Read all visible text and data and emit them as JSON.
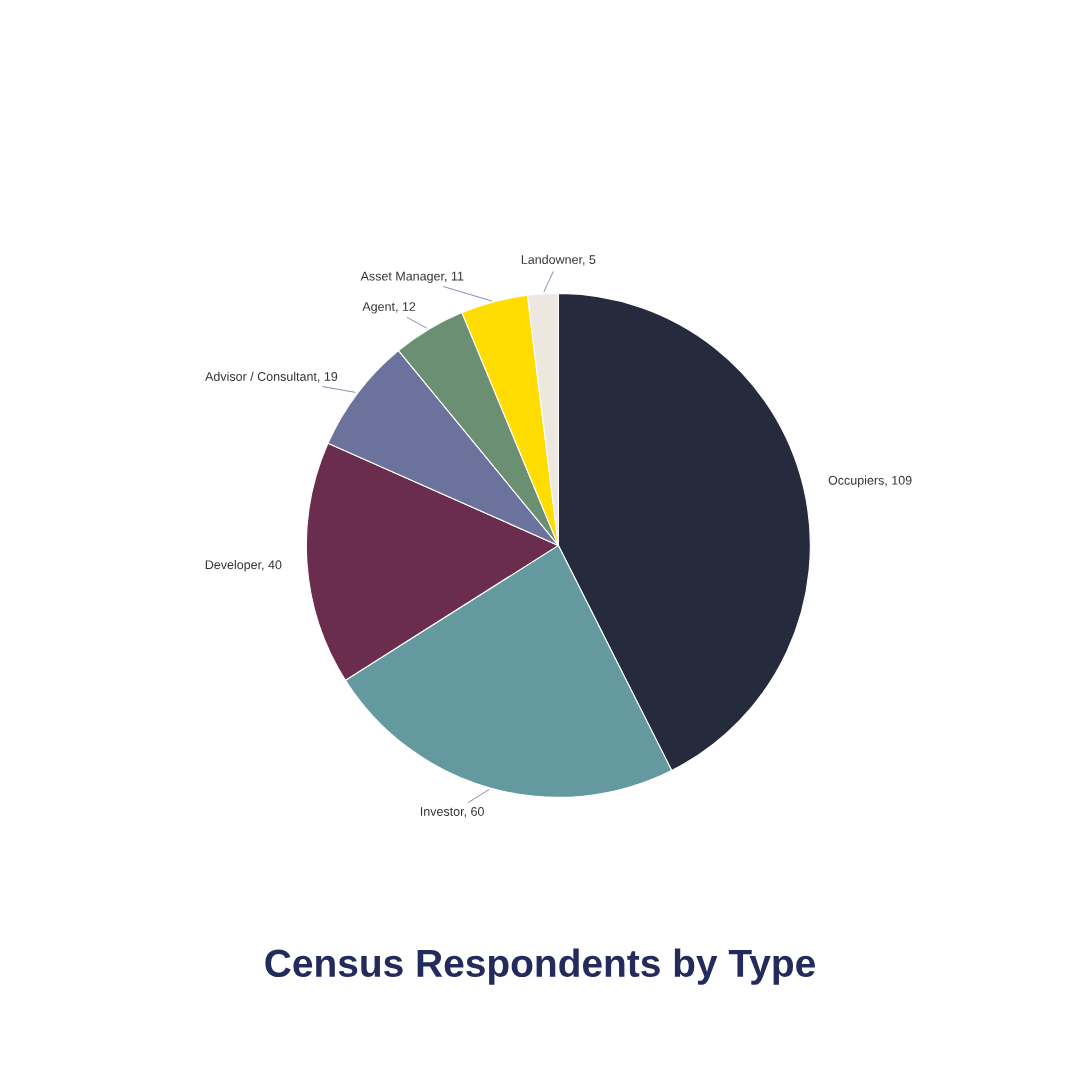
{
  "chart_data": {
    "type": "pie",
    "title": "Census Respondents by Type",
    "categories": [
      "Occupiers, 109",
      "Investor, 60",
      "Developer, 40",
      "Advisor / Consultant, 19",
      "Agent, 12",
      "Asset Manager, 11",
      "Landowner, 5"
    ],
    "values": [
      109,
      60,
      40,
      19,
      12,
      11,
      5
    ],
    "colors": [
      "#262a3d",
      "#6499a0",
      "#6b2d4e",
      "#6b739c",
      "#6a8f72",
      "#ffdd00",
      "#ede7e0"
    ]
  }
}
